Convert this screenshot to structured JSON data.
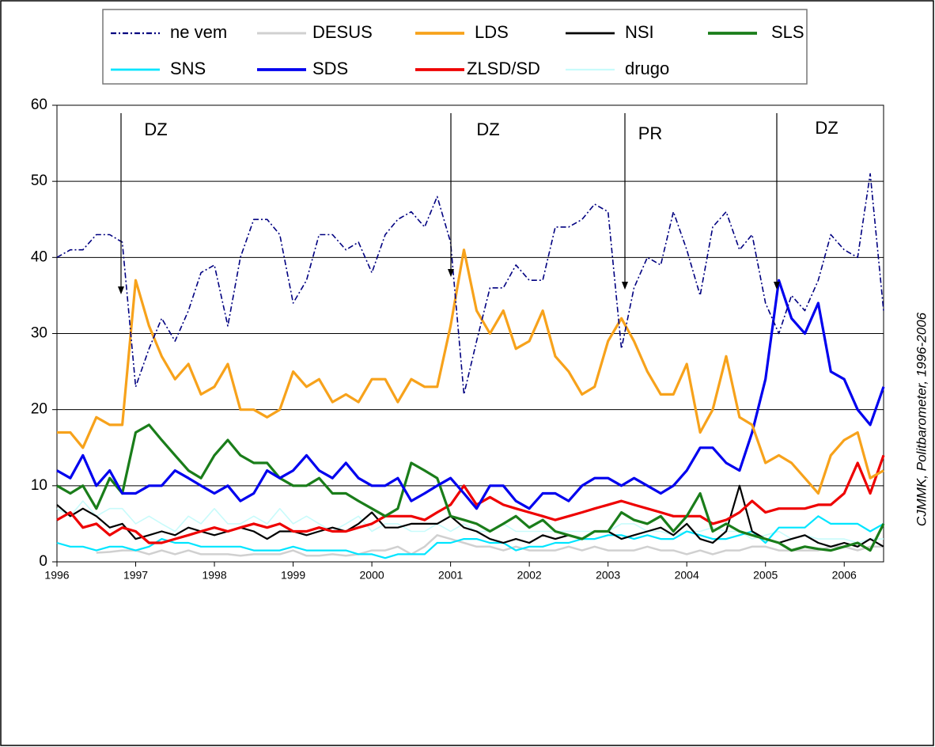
{
  "chart_data": {
    "type": "line",
    "source": "CJMMK, Politbarometer, 1996-2006",
    "annotations": [
      {
        "text": "DZ"
      },
      {
        "text": "DZ"
      },
      {
        "text": "PR"
      },
      {
        "text": "DZ"
      }
    ],
    "x": [
      1996,
      1996.17,
      1996.33,
      1996.5,
      1996.67,
      1996.83,
      1997,
      1997.17,
      1997.33,
      1997.5,
      1997.67,
      1997.83,
      1998,
      1998.17,
      1998.33,
      1998.5,
      1998.67,
      1998.83,
      1999,
      1999.17,
      1999.33,
      1999.5,
      1999.67,
      1999.83,
      2000,
      2000.17,
      2000.33,
      2000.5,
      2000.67,
      2000.83,
      2001,
      2001.17,
      2001.33,
      2001.5,
      2001.67,
      2001.83,
      2002,
      2002.17,
      2002.33,
      2002.5,
      2002.67,
      2002.83,
      2003,
      2003.17,
      2003.33,
      2003.5,
      2003.67,
      2003.83,
      2004,
      2004.17,
      2004.33,
      2004.5,
      2004.67,
      2004.83,
      2005,
      2005.17,
      2005.33,
      2005.5,
      2005.67,
      2005.83,
      2006,
      2006.17,
      2006.33,
      2006.5
    ],
    "xlim": [
      1996,
      2006.5
    ],
    "xticks": [
      1996,
      1997,
      1998,
      1999,
      2000,
      2001,
      2002,
      2003,
      2004,
      2005,
      2006
    ],
    "ylim": [
      0,
      60
    ],
    "yticks": [
      0,
      10,
      20,
      30,
      40,
      50,
      60
    ],
    "grid": true,
    "legend": "top",
    "series": [
      {
        "name": "ne vem",
        "color": "#000080",
        "dash": "dash-dot",
        "values": [
          40,
          41,
          41,
          43,
          43,
          42,
          23,
          28,
          32,
          29,
          33,
          38,
          39,
          31,
          40,
          45,
          45,
          43,
          34,
          37,
          43,
          43,
          41,
          42,
          38,
          43,
          45,
          46,
          44,
          48,
          42,
          22,
          29,
          36,
          36,
          39,
          37,
          37,
          44,
          44,
          45,
          47,
          46,
          28,
          36,
          40,
          39,
          46,
          41,
          35,
          44,
          46,
          41,
          43,
          34,
          30,
          35,
          33,
          37,
          43,
          41,
          40,
          51,
          33
        ]
      },
      {
        "name": "DESUS",
        "color": "#d0d0d0",
        "values": [
          null,
          null,
          null,
          1.2,
          1.3,
          1.5,
          1.5,
          1,
          1.5,
          1,
          1.5,
          1,
          1,
          1,
          0.8,
          1,
          1,
          1,
          1.5,
          0.8,
          0.8,
          1,
          0.8,
          1,
          1.5,
          1.5,
          2,
          1,
          2,
          3.5,
          3,
          2.5,
          2,
          2,
          1.5,
          2,
          1.5,
          1.5,
          1.5,
          2,
          1.5,
          2,
          1.5,
          1.5,
          1.5,
          2,
          1.5,
          1.5,
          1,
          1.5,
          1,
          1.5,
          1.5,
          2,
          2,
          1.5,
          1.5,
          1.5,
          1.5,
          2,
          2,
          1.5,
          2,
          2
        ]
      },
      {
        "name": "LDS",
        "color": "#f7a21b",
        "values": [
          17,
          17,
          15,
          19,
          18,
          18,
          37,
          31,
          27,
          24,
          26,
          22,
          23,
          26,
          20,
          20,
          19,
          20,
          25,
          23,
          24,
          21,
          22,
          21,
          24,
          24,
          21,
          24,
          23,
          23,
          31,
          41,
          33,
          30,
          33,
          28,
          29,
          33,
          27,
          25,
          22,
          23,
          29,
          32,
          29,
          25,
          22,
          22,
          26,
          17,
          20,
          27,
          19,
          18,
          13,
          14,
          13,
          11,
          9,
          14,
          16,
          17,
          11,
          12
        ]
      },
      {
        "name": "NSI",
        "color": "#000000",
        "values": [
          7.5,
          6,
          7,
          6,
          4.5,
          5,
          3,
          3.5,
          4,
          3.5,
          4.5,
          4,
          3.5,
          4,
          4.5,
          4,
          3,
          4,
          4,
          3.5,
          4,
          4.5,
          4,
          5,
          6.5,
          4.5,
          4.5,
          5,
          5,
          5,
          6,
          4.5,
          4,
          3,
          2.5,
          3,
          2.5,
          3.5,
          3,
          3.5,
          3,
          4,
          4,
          3,
          3.5,
          4,
          4.5,
          3.5,
          5,
          3,
          2.5,
          4,
          10,
          4,
          3,
          2.5,
          3,
          3.5,
          2.5,
          2,
          2.5,
          2,
          3,
          2
        ]
      },
      {
        "name": "SLS",
        "color": "#1a7d1a",
        "values": [
          10,
          9,
          10,
          7,
          11,
          9,
          17,
          18,
          16,
          14,
          12,
          11,
          14,
          16,
          14,
          13,
          13,
          11,
          10,
          10,
          11,
          9,
          9,
          8,
          7,
          6,
          7,
          13,
          12,
          11,
          6,
          5.5,
          5,
          4,
          5,
          6,
          4.5,
          5.5,
          4,
          3.5,
          3,
          4,
          4,
          6.5,
          5.5,
          5,
          6,
          4,
          6,
          9,
          4,
          5,
          4,
          3.5,
          3,
          2.5,
          1.5,
          2,
          1.7,
          1.5,
          2,
          2.5,
          1.5,
          5
        ]
      },
      {
        "name": "SNS",
        "color": "#00e5ff",
        "values": [
          2.5,
          2,
          2,
          1.5,
          2,
          2,
          1.5,
          2,
          3,
          2.5,
          2.5,
          2,
          2,
          2,
          2,
          1.5,
          1.5,
          1.5,
          2,
          1.5,
          1.5,
          1.5,
          1.5,
          1,
          1,
          0.5,
          1,
          1,
          1,
          2.5,
          2.5,
          3,
          3,
          2.5,
          2.5,
          1.5,
          2,
          2,
          2.5,
          2.5,
          3,
          3,
          3.5,
          3.5,
          3,
          3.5,
          3,
          3,
          4,
          3.5,
          3,
          3,
          3.5,
          4,
          2.5,
          4.5,
          4.5,
          4.5,
          6,
          5,
          5,
          5,
          4,
          5
        ]
      },
      {
        "name": "SDS",
        "color": "#0000ee",
        "values": [
          12,
          11,
          14,
          10,
          12,
          9,
          9,
          10,
          10,
          12,
          11,
          10,
          9,
          10,
          8,
          9,
          12,
          11,
          12,
          14,
          12,
          11,
          13,
          11,
          10,
          10,
          11,
          8,
          9,
          10,
          11,
          9,
          7,
          10,
          10,
          8,
          7,
          9,
          9,
          8,
          10,
          11,
          11,
          10,
          11,
          10,
          9,
          10,
          12,
          15,
          15,
          13,
          12,
          17,
          24,
          37,
          32,
          30,
          34,
          25,
          24,
          20,
          18,
          23
        ]
      },
      {
        "name": "ZLSD/SD",
        "color": "#ee0000",
        "values": [
          5.5,
          6.5,
          4.5,
          5,
          3.5,
          4.5,
          4,
          2.5,
          2.5,
          3,
          3.5,
          4,
          4.5,
          4,
          4.5,
          5,
          4.5,
          5,
          4,
          4,
          4.5,
          4,
          4,
          4.5,
          5,
          6,
          6,
          6,
          5.5,
          6.5,
          7.5,
          10,
          7.5,
          8.5,
          7.5,
          7,
          6.5,
          6,
          5.5,
          6,
          6.5,
          7,
          7.5,
          8,
          7.5,
          7,
          6.5,
          6,
          6,
          6,
          5,
          5.5,
          6.5,
          8,
          6.5,
          7,
          7,
          7,
          7.5,
          7.5,
          9,
          13,
          9,
          14
        ]
      },
      {
        "name": "drugo",
        "color": "#c8fbfb",
        "values": [
          7,
          6,
          8,
          6,
          7,
          7,
          5,
          6,
          5,
          4,
          6,
          5,
          7,
          5,
          5,
          6,
          5,
          7,
          5,
          6,
          5,
          4,
          5,
          6,
          4,
          5,
          5,
          4,
          4,
          5,
          4,
          5,
          4,
          4,
          5,
          4,
          4,
          4,
          4,
          4,
          4,
          4,
          4,
          5,
          5,
          4,
          4,
          3.5,
          4,
          4,
          4.5,
          4,
          4,
          3,
          3.5,
          4,
          3,
          3.5,
          3,
          3,
          3,
          2.5,
          3,
          3
        ]
      }
    ]
  }
}
